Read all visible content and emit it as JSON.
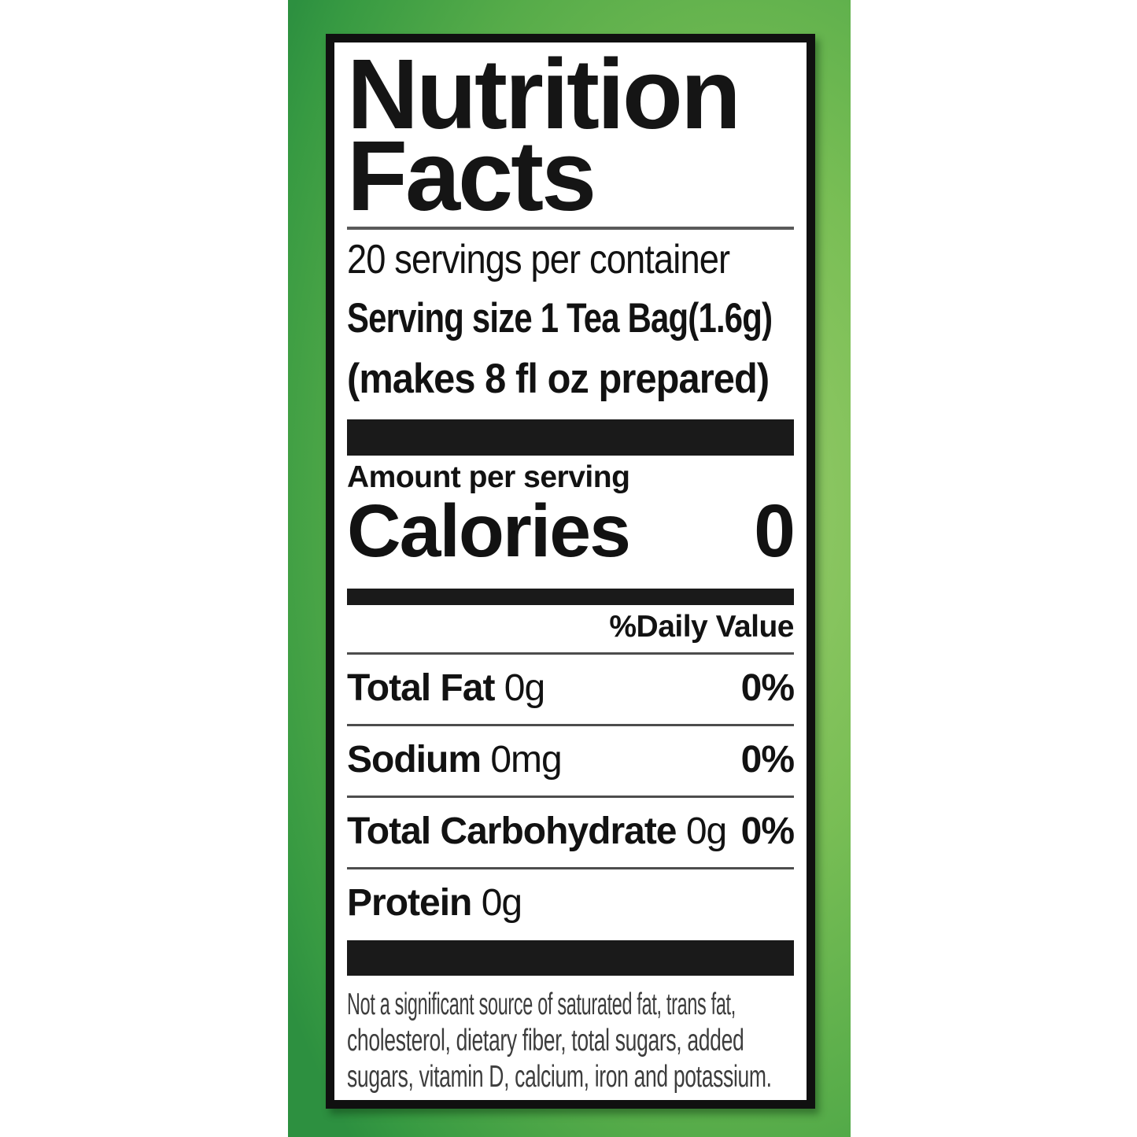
{
  "label": {
    "title_line1": "Nutrition",
    "title_line2": "Facts",
    "servings_per_container": "20 servings per container",
    "serving_size_line": "Serving size 1 Tea Bag(1.6g)",
    "serving_size_note": "(makes 8 fl oz prepared)",
    "amount_per_serving": "Amount per serving",
    "calories_label": "Calories",
    "calories_value": "0",
    "daily_value_header": "%Daily Value",
    "nutrients": [
      {
        "name": "Total Fat",
        "amount": "0g",
        "dv": "0%"
      },
      {
        "name": "Sodium",
        "amount": "0mg",
        "dv": "0%"
      },
      {
        "name": "Total Carbohydrate",
        "amount": "0g",
        "dv": "0%"
      },
      {
        "name": "Protein",
        "amount": "0g"
      }
    ],
    "footnote_lines": [
      "Not a significant source of saturated fat, trans fat,",
      "cholesterol, dietary fiber, total sugars, added",
      "sugars, vitamin D, calcium, iron and potassium."
    ]
  },
  "colors": {
    "panel_green_light": "#97cb69",
    "panel_green_dark": "#2d9040",
    "label_background": "#ffffff",
    "label_border": "#101010",
    "text": "#121212",
    "hairline": "#4d4d4d",
    "footnote_text": "#3d3d3d"
  }
}
